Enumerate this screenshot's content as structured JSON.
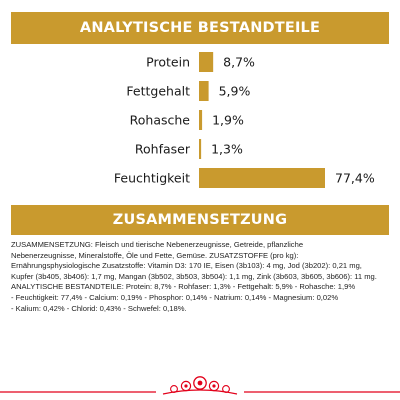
{
  "headers": {
    "analysis": "ANALYTISCHE BESTANDTEILE",
    "composition": "ZUSAMMENSETZUNG"
  },
  "chart_data": {
    "type": "bar",
    "orientation": "horizontal",
    "title": "ANALYTISCHE BESTANDTEILE",
    "categories": [
      "Protein",
      "Fettgehalt",
      "Rohasche",
      "Rohfaser",
      "Feuchtigkeit"
    ],
    "values": [
      8.7,
      5.9,
      1.9,
      1.3,
      77.4
    ],
    "value_labels": [
      "8,7%",
      "5,9%",
      "1,9%",
      "1,3%",
      "77,4%"
    ],
    "unit": "%",
    "xlim": [
      0,
      77.4
    ],
    "grid": false,
    "legend": "none",
    "bar_color": "#c99a2e"
  },
  "composition_lines": [
    "ZUSAMMENSETZUNG: Fleisch und tierische Nebenerzeugnisse, Getreide, pflanzliche",
    "Nebenerzeugnisse, Mineralstoffe, Öle und Fette, Gemüse. ZUSATZSTOFFE (pro kg):",
    "Ernährungsphysiologische Zusatzstoffe: Vitamin D3: 170 IE, Eisen (3b103): 4 mg, Jod (3b202): 0,21 mg,",
    "Kupfer (3b405, 3b406): 1,7 mg, Mangan (3b502, 3b503, 3b504): 1,1 mg, Zink (3b603, 3b605, 3b606): 11 mg.",
    "ANALYTISCHE BESTANDTEILE: Protein: 8,7% - Rohfaser: 1,3% - Fettgehalt: 5,9% - Rohasche: 1,9%",
    "- Feuchtigkeit: 77,4% - Calcium: 0,19% - Phosphor: 0,14% - Natrium: 0,14% - Magnesium: 0,02%",
    "- Kalium: 0,42% - Chlorid: 0,43% - Schwefel: 0,18%."
  ],
  "colors": {
    "accent": "#c99a2e",
    "logo_red": "#e2001a"
  },
  "icons": {
    "logo": "royal-canin-crown-icon"
  }
}
